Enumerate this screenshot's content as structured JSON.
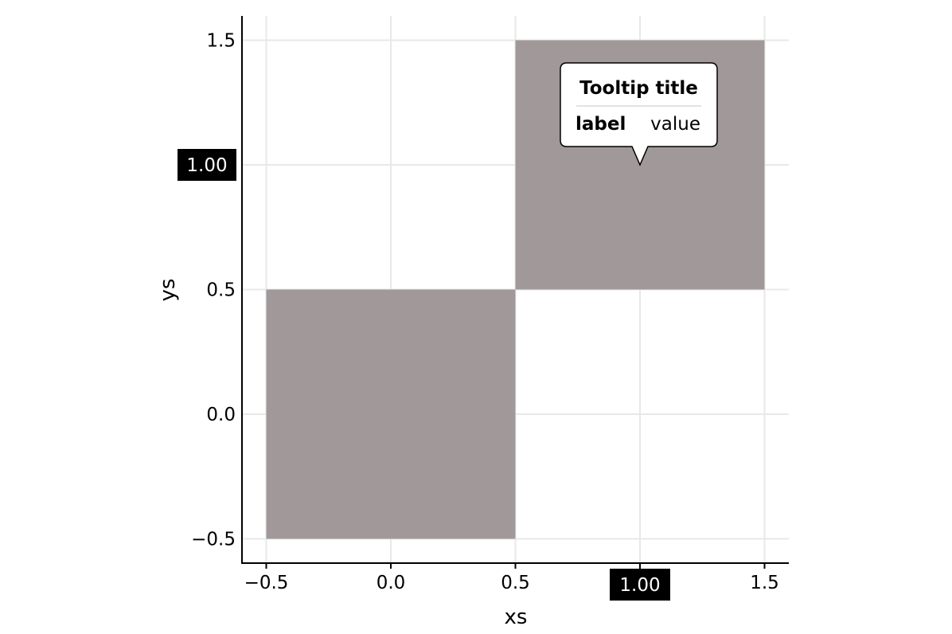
{
  "chart_data": {
    "type": "heatmap",
    "xlabel": "xs",
    "ylabel": "ys",
    "xlim": [
      -0.6,
      1.6
    ],
    "ylim": [
      -0.6,
      1.6
    ],
    "x_ticks": [
      -0.5,
      0.0,
      0.5,
      1.0,
      1.5
    ],
    "y_ticks": [
      -0.5,
      0.0,
      0.5,
      1.0,
      1.5
    ],
    "x_tick_labels": [
      "−0.5",
      "0.0",
      "0.5",
      "1.00",
      "1.5"
    ],
    "y_tick_labels": [
      "−0.5",
      "0.0",
      "0.5",
      "1.00",
      "1.5"
    ],
    "grid": true,
    "cells": [
      {
        "x": 0,
        "y": 0,
        "color": "#a09899"
      },
      {
        "x": 1,
        "y": 1,
        "color": "#a09899"
      }
    ],
    "highlighted_x": "1.00",
    "highlighted_y": "1.00",
    "tooltip": {
      "title": "Tooltip title",
      "label": "label",
      "value": "value",
      "anchor_x": 1.0,
      "anchor_y": 1.0
    }
  },
  "colors": {
    "cell": "#a09899",
    "grid": "#e8e8e8",
    "axis": "#000000",
    "highlight_bg": "#000000",
    "highlight_text": "#ffffff",
    "tooltip_bg": "#ffffff",
    "tooltip_border": "#000000"
  }
}
